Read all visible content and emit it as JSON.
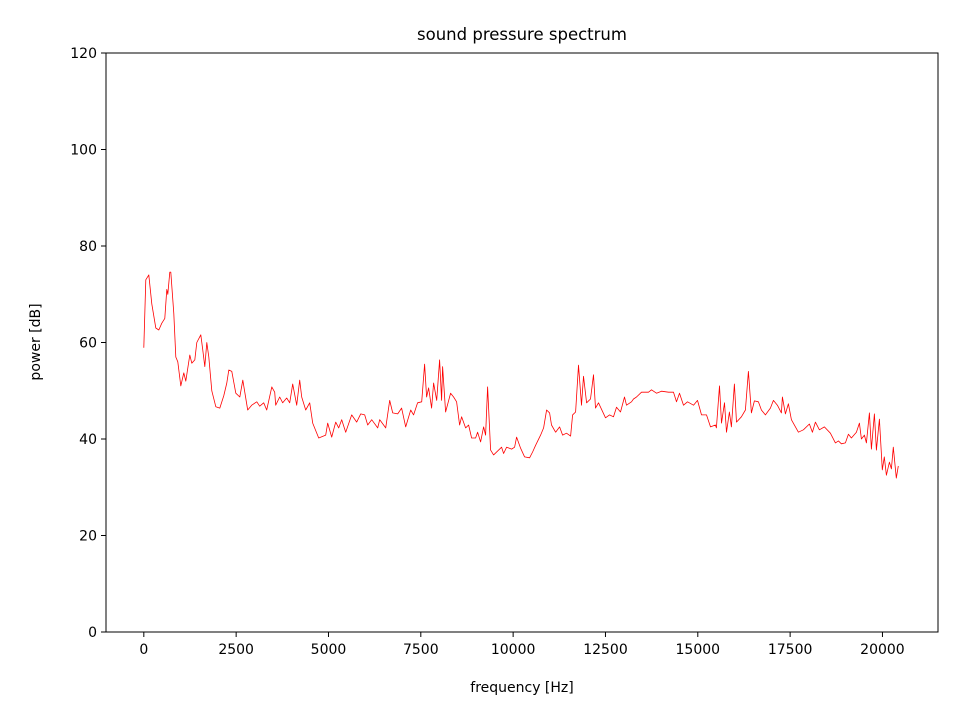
{
  "chart_data": {
    "type": "line",
    "title": "sound pressure spectrum",
    "xlabel": "frequency [Hz]",
    "ylabel": "power [dB]",
    "xlim": [
      -1024,
      21504
    ],
    "ylim": [
      0,
      120
    ],
    "xticks": [
      0,
      2500,
      5000,
      7500,
      10000,
      12500,
      15000,
      17500,
      20000
    ],
    "yticks": [
      0,
      20,
      40,
      60,
      80,
      100,
      120
    ],
    "grid": false,
    "line_color": "#ff0000",
    "series": [
      {
        "x": [
          0,
          54,
          135,
          216,
          325,
          406,
          487,
          568,
          622,
          649,
          704,
          731,
          812,
          866,
          920,
          1001,
          1082,
          1137,
          1245,
          1299,
          1380,
          1434,
          1542,
          1597,
          1651,
          1705,
          1759,
          1840,
          1948,
          2057,
          2165,
          2246,
          2300,
          2381,
          2490,
          2598,
          2679,
          2814,
          2922,
          3058,
          3139,
          3247,
          3328,
          3464,
          3545,
          3572,
          3680,
          3761,
          3870,
          3951,
          4032,
          4140,
          4221,
          4275,
          4384,
          4492,
          4573,
          4736,
          4925,
          4979,
          5087,
          5196,
          5277,
          5358,
          5466,
          5628,
          5764,
          5872,
          5980,
          6061,
          6170,
          6332,
          6386,
          6549,
          6657,
          6738,
          6873,
          6981,
          7090,
          7225,
          7306,
          7414,
          7523,
          7604,
          7658,
          7712,
          7793,
          7847,
          7929,
          8010,
          8064,
          8091,
          8172,
          8307,
          8389,
          8470,
          8551,
          8605,
          8713,
          8795,
          8876,
          8984,
          9038,
          9119,
          9200,
          9255,
          9309,
          9390,
          9471,
          9606,
          9687,
          9742,
          9823,
          9958,
          10039,
          10093,
          10202,
          10310,
          10445,
          10526,
          10608,
          10743,
          10824,
          10905,
          10986,
          11040,
          11149,
          11257,
          11338,
          11446,
          11555,
          11609,
          11690,
          11771,
          11852,
          11906,
          11988,
          12096,
          12177,
          12231,
          12312,
          12502,
          12610,
          12718,
          12799,
          12908,
          13016,
          13070,
          13205,
          13259,
          13341,
          13476,
          13665,
          13746,
          13882,
          14017,
          14207,
          14342,
          14423,
          14504,
          14612,
          14721,
          14883,
          14991,
          15099,
          15235,
          15343,
          15478,
          15505,
          15587,
          15641,
          15722,
          15776,
          15857,
          15911,
          15992,
          16047,
          16182,
          16290,
          16371,
          16452,
          16534,
          16642,
          16723,
          16831,
          16967,
          17048,
          17156,
          17264,
          17291,
          17373,
          17454,
          17535,
          17724,
          17860,
          18022,
          18103,
          18184,
          18293,
          18428,
          18590,
          18726,
          18807,
          18888,
          18996,
          19077,
          19158,
          19294,
          19375,
          19429,
          19510,
          19564,
          19646,
          19700,
          19781,
          19835,
          19916,
          19997,
          20051,
          20106,
          20187,
          20241,
          20295,
          20376,
          20430
        ],
        "y": [
          58.9,
          73,
          74,
          68,
          63,
          62.6,
          64,
          65,
          71,
          70,
          74.6,
          74.6,
          66,
          57,
          56,
          51,
          53.7,
          52,
          57.4,
          55.7,
          56.4,
          60,
          61.6,
          58.4,
          55,
          60,
          57,
          50,
          46.7,
          46.4,
          49,
          51.6,
          54.3,
          54,
          49.5,
          48.7,
          52.2,
          46,
          47,
          47.7,
          46.8,
          47.5,
          46,
          50.8,
          49.7,
          47,
          48.7,
          47.5,
          48.5,
          47.5,
          51.4,
          47,
          52.2,
          48.7,
          46,
          47.5,
          43.3,
          40.2,
          40.8,
          43.3,
          40.4,
          43.5,
          42.3,
          44,
          41.4,
          45,
          43.5,
          45.2,
          45,
          42.9,
          44,
          42.3,
          44,
          42.3,
          48,
          45.4,
          45.2,
          46.4,
          42.5,
          46,
          45,
          47.5,
          47.7,
          55.5,
          48.7,
          50.6,
          46.4,
          51.6,
          48,
          56.4,
          48,
          55,
          45.6,
          49.5,
          48.7,
          47.7,
          42.9,
          44.6,
          42.3,
          42.9,
          40.2,
          40.2,
          41.4,
          39.4,
          42.5,
          40.8,
          50.8,
          37.7,
          36.7,
          37.7,
          38.3,
          37,
          38.3,
          37.9,
          38.3,
          40.4,
          38.1,
          36.3,
          36.1,
          37.3,
          38.7,
          40.8,
          42.3,
          46,
          45.4,
          42.9,
          41.4,
          42.5,
          40.8,
          41.2,
          40.6,
          45,
          45.6,
          55.3,
          47,
          53,
          47.5,
          48.3,
          53.3,
          46.4,
          47.5,
          44.4,
          45,
          44.6,
          46.6,
          45.6,
          48.7,
          47,
          47.7,
          48.3,
          48.7,
          49.7,
          49.7,
          50.2,
          49.5,
          49.9,
          49.7,
          49.7,
          47.7,
          49.5,
          47,
          47.7,
          47,
          48,
          45,
          45,
          42.5,
          42.9,
          42.3,
          51,
          43.3,
          47.5,
          41.4,
          45.6,
          42.5,
          51.4,
          43.5,
          44.6,
          46,
          54,
          45.4,
          47.9,
          47.7,
          46,
          45,
          46.4,
          48,
          47,
          45.4,
          48.7,
          45.2,
          47.3,
          44,
          41.4,
          41.9,
          43.1,
          41.4,
          43.5,
          41.9,
          42.5,
          41.2,
          39.2,
          39.6,
          39,
          39.2,
          41,
          40.2,
          41.4,
          43.3,
          40,
          40.8,
          39.2,
          45.4,
          37.9,
          45.2,
          37.7,
          44.1,
          33.6,
          36.3,
          32.5,
          35.2,
          33.8,
          38.3,
          31.9,
          34.4
        ]
      }
    ]
  }
}
